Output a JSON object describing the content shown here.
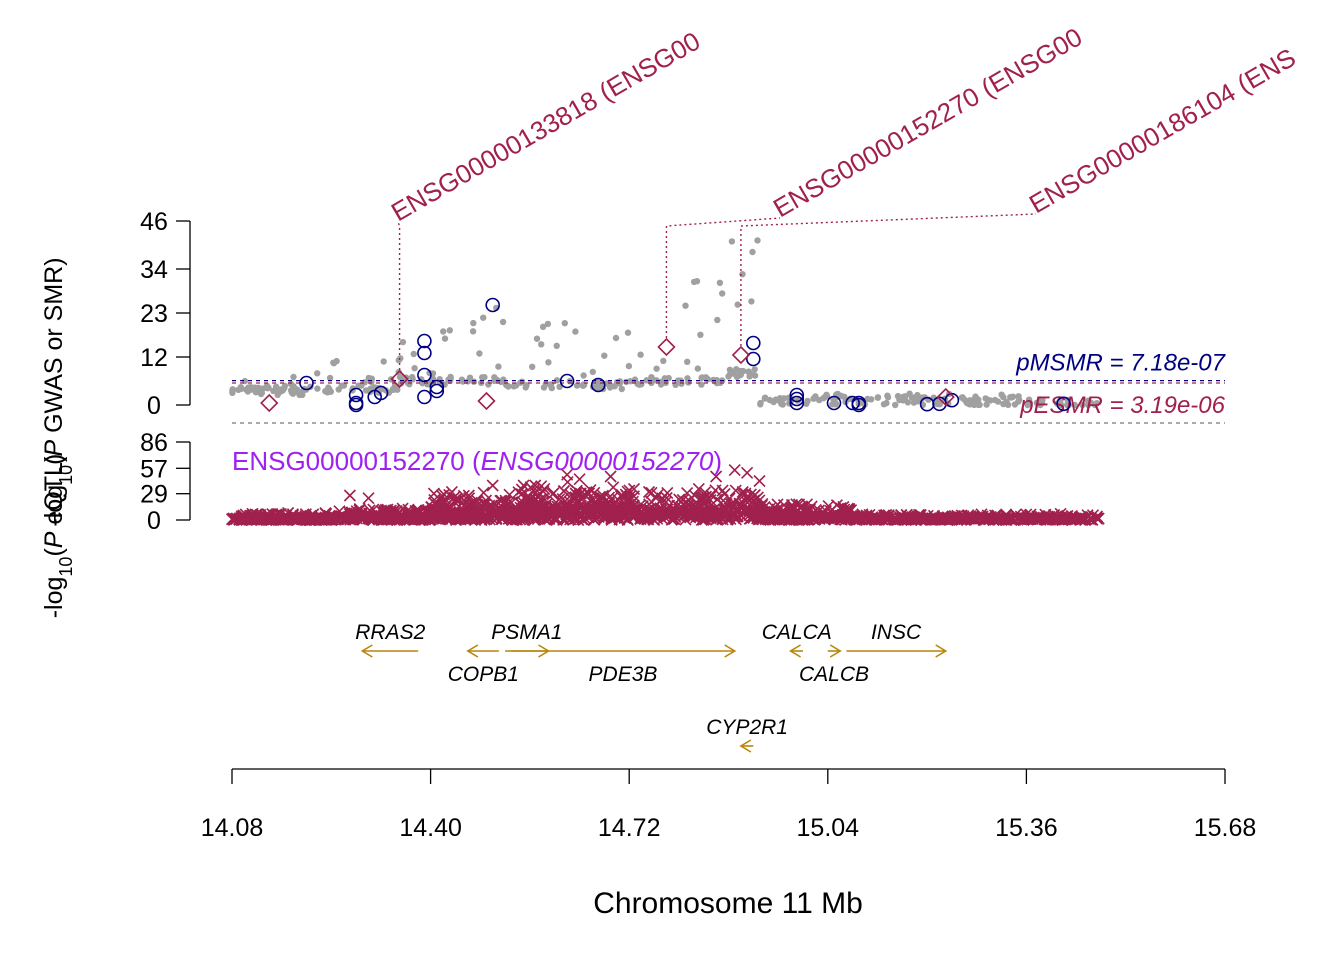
{
  "chart_data": {
    "type": "scatter",
    "xlabel": "Chromosome 11 Mb",
    "x_ticks": [
      "14.08",
      "14.40",
      "14.72",
      "15.04",
      "15.36",
      "15.68"
    ],
    "xlim": [
      14.08,
      15.68
    ],
    "top_panel": {
      "ylabel_prefix": "-log",
      "ylabel_sub": "10",
      "ylabel_mid": "(",
      "ylabel_p": "P",
      "ylabel_suffix": " GWAS or SMR)",
      "y_ticks": [
        "0",
        "12",
        "23",
        "34",
        "46"
      ],
      "ylim": [
        0,
        46
      ],
      "pMSMR_text": "pMSMR = 7.18e-07",
      "pESMR_text": "pESMR = 3.19e-06",
      "pMSMR_level": 6.1,
      "pESMR_level": 5.5,
      "bottom_dashed_level": -4.5,
      "gwas_color": "#A0A0A0",
      "msmr_color": "#000080",
      "esmr_color": "#A0204E",
      "annotations": [
        {
          "label": "ENSG00000133818 (ENSG00",
          "x": 14.35,
          "y": 6.5
        },
        {
          "label": "ENSG00000152270 (ENSG00",
          "x": 14.78,
          "y": 14.5
        },
        {
          "label": "ENSG00000186104 (ENS",
          "x": 14.9,
          "y": 12.5
        }
      ],
      "gwas_segments": [
        {
          "x0": 14.08,
          "x1": 14.2,
          "base": 3.5,
          "spread": 3.5,
          "n": 60
        },
        {
          "x0": 14.2,
          "x1": 14.35,
          "base": 4.0,
          "spread": 9.0,
          "n": 45
        },
        {
          "x0": 14.35,
          "x1": 14.52,
          "base": 6.0,
          "spread": 19.0,
          "n": 55
        },
        {
          "x0": 14.52,
          "x1": 14.72,
          "base": 5.0,
          "spread": 16.0,
          "n": 55
        },
        {
          "x0": 14.72,
          "x1": 14.88,
          "base": 6.0,
          "spread": 28.0,
          "n": 45
        },
        {
          "x0": 14.88,
          "x1": 14.93,
          "base": 8.0,
          "spread": 36.0,
          "n": 25
        },
        {
          "x0": 14.93,
          "x1": 15.36,
          "base": 1.0,
          "spread": 2.0,
          "n": 120
        },
        {
          "x0": 15.36,
          "x1": 15.48,
          "base": 0.5,
          "spread": 1.0,
          "n": 25
        }
      ],
      "msmr_points": [
        {
          "x": 14.2,
          "y": 5.5
        },
        {
          "x": 14.28,
          "y": 2.5
        },
        {
          "x": 14.28,
          "y": 0.5
        },
        {
          "x": 14.28,
          "y": 0.0
        },
        {
          "x": 14.31,
          "y": 2.0
        },
        {
          "x": 14.32,
          "y": 3.0
        },
        {
          "x": 14.39,
          "y": 16.0
        },
        {
          "x": 14.39,
          "y": 13.0
        },
        {
          "x": 14.39,
          "y": 7.5
        },
        {
          "x": 14.39,
          "y": 2.0
        },
        {
          "x": 14.41,
          "y": 4.5
        },
        {
          "x": 14.41,
          "y": 3.5
        },
        {
          "x": 14.5,
          "y": 25.0
        },
        {
          "x": 14.62,
          "y": 6.0
        },
        {
          "x": 14.67,
          "y": 5.0
        },
        {
          "x": 14.92,
          "y": 15.5
        },
        {
          "x": 14.92,
          "y": 11.5
        },
        {
          "x": 14.99,
          "y": 2.5
        },
        {
          "x": 14.99,
          "y": 1.5
        },
        {
          "x": 14.99,
          "y": 0.5
        },
        {
          "x": 15.05,
          "y": 0.5
        },
        {
          "x": 15.08,
          "y": 0.5
        },
        {
          "x": 15.09,
          "y": 0.5
        },
        {
          "x": 15.09,
          "y": 0.0
        },
        {
          "x": 15.2,
          "y": 0.2
        },
        {
          "x": 15.22,
          "y": 0.3
        },
        {
          "x": 15.24,
          "y": 1.2
        },
        {
          "x": 15.42,
          "y": 0.3
        }
      ],
      "esmr_points": [
        {
          "x": 14.14,
          "y": 0.5
        },
        {
          "x": 14.35,
          "y": 6.5
        },
        {
          "x": 14.49,
          "y": 1.0
        },
        {
          "x": 14.78,
          "y": 14.5
        },
        {
          "x": 14.9,
          "y": 12.5
        },
        {
          "x": 15.23,
          "y": 2.0
        }
      ]
    },
    "eqtl_panel": {
      "title_gene": "ENSG00000152270",
      "title_open": " (",
      "title_italic": "ENSG00000152270",
      "title_close": ")",
      "title_color": "#A020F0",
      "ylabel_prefix": "-log",
      "ylabel_sub": "10",
      "ylabel_mid": "(",
      "ylabel_p": "P",
      "ylabel_suffix": " eQTL)",
      "y_ticks": [
        "0",
        "29",
        "57",
        "86"
      ],
      "ylim": [
        0,
        86
      ],
      "marker_color": "#A0204E",
      "segments": [
        {
          "x0": 14.08,
          "x1": 14.25,
          "base": 2.0,
          "spread": 6.0,
          "n": 260
        },
        {
          "x0": 14.25,
          "x1": 14.4,
          "base": 3.0,
          "spread": 10.0,
          "n": 200
        },
        {
          "x0": 14.4,
          "x1": 14.54,
          "base": 10.0,
          "spread": 22.0,
          "n": 260
        },
        {
          "x0": 14.54,
          "x1": 14.7,
          "base": 15.0,
          "spread": 28.0,
          "n": 300
        },
        {
          "x0": 14.7,
          "x1": 14.93,
          "base": 12.0,
          "spread": 25.0,
          "n": 320
        },
        {
          "x0": 14.93,
          "x1": 15.08,
          "base": 5.0,
          "spread": 14.0,
          "n": 220
        },
        {
          "x0": 15.08,
          "x1": 15.48,
          "base": 2.0,
          "spread": 5.0,
          "n": 380
        }
      ],
      "peaks": [
        {
          "x": 14.27,
          "y": 27
        },
        {
          "x": 14.3,
          "y": 24
        },
        {
          "x": 14.5,
          "y": 38
        },
        {
          "x": 14.62,
          "y": 50
        },
        {
          "x": 14.64,
          "y": 45
        },
        {
          "x": 14.69,
          "y": 48
        },
        {
          "x": 14.86,
          "y": 48
        },
        {
          "x": 14.89,
          "y": 55
        },
        {
          "x": 14.91,
          "y": 52
        },
        {
          "x": 14.93,
          "y": 43
        }
      ]
    },
    "genes": [
      {
        "name": "RRAS2",
        "start": 14.29,
        "end": 14.38,
        "strand": "-",
        "label_row": "above",
        "row": 0
      },
      {
        "name": "COPB1",
        "start": 14.46,
        "end": 14.51,
        "strand": "-",
        "label_row": "below",
        "row": 0
      },
      {
        "name": "PSMA1",
        "start": 14.52,
        "end": 14.59,
        "strand": "+",
        "label_row": "above",
        "row": 0
      },
      {
        "name": "PDE3B",
        "start": 14.53,
        "end": 14.89,
        "strand": "+",
        "label_row": "below",
        "row": 0
      },
      {
        "name": "CALCA",
        "start": 14.98,
        "end": 15.0,
        "strand": "-",
        "label_row": "above",
        "row": 0
      },
      {
        "name": "CALCB",
        "start": 15.04,
        "end": 15.06,
        "strand": "+",
        "label_row": "below",
        "row": 0
      },
      {
        "name": "INSC",
        "start": 15.07,
        "end": 15.23,
        "strand": "+",
        "label_row": "above",
        "row": 0
      },
      {
        "name": "CYP2R1",
        "start": 14.9,
        "end": 14.92,
        "strand": "-",
        "label_row": "above",
        "row": 1
      }
    ],
    "gene_color": "#B8860B"
  }
}
